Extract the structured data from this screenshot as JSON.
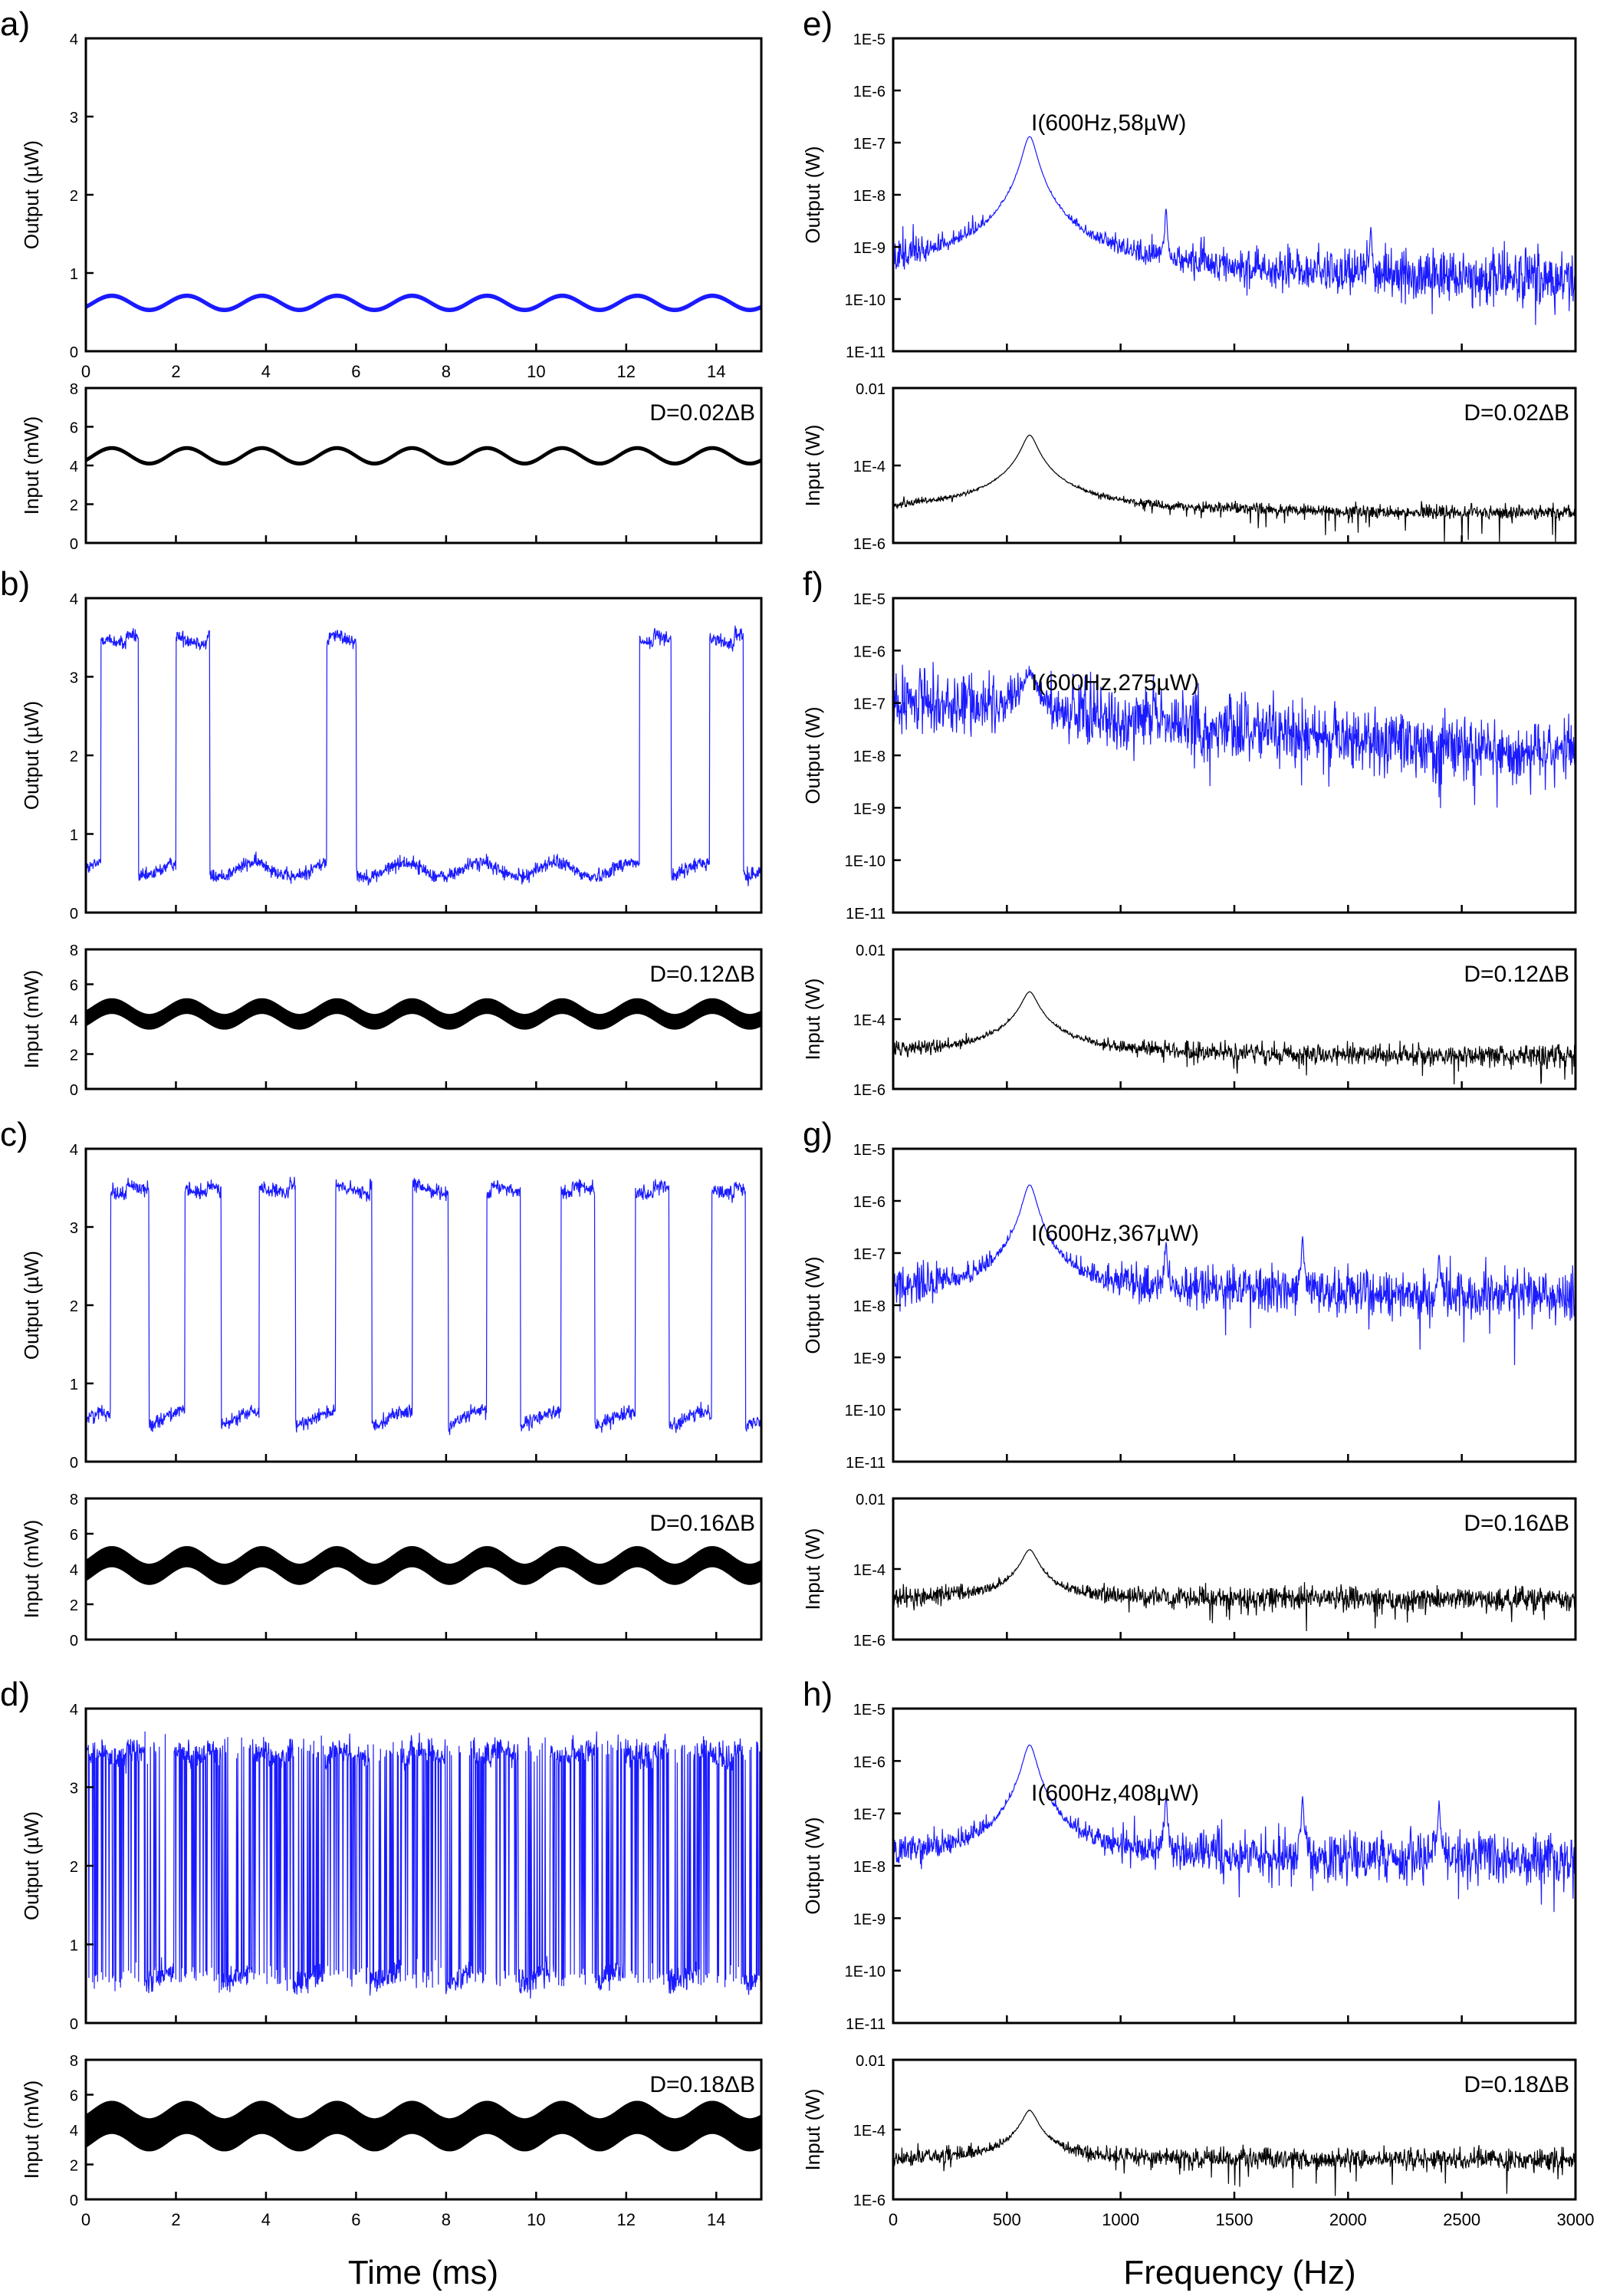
{
  "figure": {
    "time_xlabel": "Time (ms)",
    "freq_xlabel": "Frequency (Hz)"
  },
  "colors": {
    "output": "#1a1aff",
    "input": "#000000"
  },
  "chart_data": [
    {
      "id": "a-output",
      "panel_label": "a)",
      "type": "line",
      "ylabel": "Output (µW)",
      "xlim": [
        0,
        15
      ],
      "ylim": [
        0,
        4.4
      ],
      "xticks": [
        "0",
        "2",
        "4",
        "6",
        "8",
        "10",
        "12",
        "14"
      ],
      "yticks": [
        "0",
        "1",
        "2",
        "3",
        "4"
      ],
      "series": [
        {
          "behaviour": "sinusoid",
          "period_ms": 1.667,
          "baseline": 0.58,
          "peak": 0.78,
          "noise": 0.03,
          "color": "output"
        }
      ]
    },
    {
      "id": "a-input",
      "panel_label": "",
      "type": "line",
      "ylabel": "Input (mW)",
      "annotation": "D=0.02ΔB",
      "xlim": [
        0,
        15
      ],
      "ylim": [
        0,
        8
      ],
      "yticks": [
        "0",
        "2",
        "4",
        "6",
        "8"
      ],
      "series": [
        {
          "behaviour": "sinusoid",
          "period_ms": 1.667,
          "mean": 4.5,
          "amplitude": 0.4,
          "noise": 0.1,
          "color": "input"
        }
      ]
    },
    {
      "id": "b-output",
      "panel_label": "b)",
      "type": "line",
      "ylabel": "Output (µW)",
      "xlim": [
        0,
        15
      ],
      "ylim": [
        0,
        4.4
      ],
      "yticks": [
        "0",
        "1",
        "2",
        "3",
        "4"
      ],
      "series": [
        {
          "behaviour": "stochastic-switching",
          "low": 0.6,
          "high": 3.9,
          "high_intervals_ms": [
            [
              0.33,
              1.17
            ],
            [
              2.0,
              2.75
            ],
            [
              5.35,
              6.0
            ],
            [
              12.3,
              13.0
            ],
            [
              13.85,
              14.6
            ]
          ],
          "noise": 0.1,
          "color": "output"
        }
      ]
    },
    {
      "id": "b-input",
      "panel_label": "",
      "type": "line",
      "ylabel": "Input (mW)",
      "annotation": "D=0.12ΔB",
      "xlim": [
        0,
        15
      ],
      "ylim": [
        0,
        8
      ],
      "yticks": [
        "0",
        "2",
        "4",
        "6",
        "8"
      ],
      "series": [
        {
          "behaviour": "sinusoid",
          "period_ms": 1.667,
          "mean": 4.3,
          "amplitude": 0.45,
          "noise": 0.45,
          "color": "input"
        }
      ]
    },
    {
      "id": "c-output",
      "panel_label": "c)",
      "type": "line",
      "ylabel": "Output (µW)",
      "xlim": [
        0,
        15
      ],
      "ylim": [
        0,
        4.4
      ],
      "yticks": [
        "0",
        "1",
        "2",
        "3",
        "4"
      ],
      "series": [
        {
          "behaviour": "stochastic-switching",
          "low": 0.6,
          "high": 3.9,
          "high_intervals_ms": [
            [
              0.55,
              1.4
            ],
            [
              2.2,
              3.0
            ],
            [
              3.85,
              4.65
            ],
            [
              5.55,
              6.35
            ],
            [
              7.25,
              8.05
            ],
            [
              8.9,
              9.65
            ],
            [
              10.55,
              11.3
            ],
            [
              12.2,
              12.95
            ],
            [
              13.9,
              14.65
            ]
          ],
          "noise": 0.1,
          "color": "output"
        }
      ]
    },
    {
      "id": "c-input",
      "panel_label": "",
      "type": "line",
      "ylabel": "Input (mW)",
      "annotation": "D=0.16ΔB",
      "xlim": [
        0,
        15
      ],
      "ylim": [
        0,
        8
      ],
      "yticks": [
        "0",
        "2",
        "4",
        "6",
        "8"
      ],
      "series": [
        {
          "behaviour": "sinusoid",
          "period_ms": 1.667,
          "mean": 4.2,
          "amplitude": 0.5,
          "noise": 0.6,
          "color": "input"
        }
      ]
    },
    {
      "id": "d-output",
      "panel_label": "d)",
      "type": "line",
      "ylabel": "Output (µW)",
      "xlim": [
        0,
        15
      ],
      "ylim": [
        0,
        4.4
      ],
      "yticks": [
        "0",
        "1",
        "2",
        "3",
        "4"
      ],
      "series": [
        {
          "behaviour": "stochastic-switching",
          "low": 0.65,
          "high": 3.85,
          "high_intervals_ms": [
            [
              0.0,
              1.3
            ],
            [
              1.95,
              3.0
            ],
            [
              3.7,
              4.6
            ],
            [
              5.3,
              6.3
            ],
            [
              7.0,
              7.95
            ],
            [
              8.6,
              9.6
            ],
            [
              10.3,
              11.3
            ],
            [
              11.95,
              12.9
            ],
            [
              13.6,
              14.6
            ]
          ],
          "noise": 0.18,
          "chatter": true,
          "color": "output"
        }
      ]
    },
    {
      "id": "d-input",
      "panel_label": "",
      "type": "line",
      "ylabel": "Input (mW)",
      "annotation": "D=0.18ΔB",
      "xlim": [
        0,
        15
      ],
      "ylim": [
        0,
        8
      ],
      "xlabel": "Time (ms)",
      "xticks": [
        "0",
        "2",
        "4",
        "6",
        "8",
        "10",
        "12",
        "14"
      ],
      "yticks": [
        "0",
        "2",
        "4",
        "6",
        "8"
      ],
      "series": [
        {
          "behaviour": "sinusoid",
          "period_ms": 1.667,
          "mean": 4.2,
          "amplitude": 0.5,
          "noise": 0.95,
          "color": "input"
        }
      ]
    },
    {
      "id": "e-output",
      "panel_label": "e)",
      "type": "line",
      "yscale": "log",
      "ylabel": "Output (W)",
      "annotation": "I(600Hz,58µW)",
      "xlim": [
        0,
        3000
      ],
      "ylim_exp": [
        -11,
        -5
      ],
      "yticks": [
        "1E-11",
        "1E-10",
        "1E-9",
        "1E-8",
        "1E-7",
        "1E-6",
        "1E-5"
      ],
      "series": [
        {
          "behaviour": "spectrum",
          "floor_W": 4e-10,
          "floor_slope_decades": -0.25,
          "noise_decades": 0.28,
          "peaks": [
            {
              "f_Hz": 600,
              "W": 1.3e-07
            },
            {
              "f_Hz": 1200,
              "W": 5e-09
            },
            {
              "f_Hz": 2100,
              "W": 2e-09
            }
          ],
          "color": "output"
        }
      ]
    },
    {
      "id": "e-input",
      "panel_label": "",
      "type": "line",
      "yscale": "log",
      "ylabel": "Input (W)",
      "annotation": "D=0.02ΔB",
      "xlim": [
        0,
        3000
      ],
      "ylim_exp": [
        -7,
        -2
      ],
      "yticks": [
        "1E-6",
        "1E-4",
        "0.01"
      ],
      "series": [
        {
          "behaviour": "spectrum",
          "floor_W": 1.1e-06,
          "floor_slope_decades": -0.1,
          "noise_decades": 0.12,
          "peaks": [
            {
              "f_Hz": 600,
              "W": 0.0003
            }
          ],
          "color": "input"
        }
      ]
    },
    {
      "id": "f-output",
      "panel_label": "f)",
      "type": "line",
      "yscale": "log",
      "ylabel": "Output (W)",
      "annotation": "I(600Hz,275µW)",
      "xlim": [
        0,
        3000
      ],
      "ylim_exp": [
        -11,
        -5
      ],
      "yticks": [
        "1E-11",
        "1E-10",
        "1E-9",
        "1E-8",
        "1E-7",
        "1E-6",
        "1E-5"
      ],
      "series": [
        {
          "behaviour": "spectrum",
          "floor_W": 1.2e-07,
          "floor_slope_decades": -1.1,
          "noise_decades": 0.3,
          "peaks": [
            {
              "f_Hz": 600,
              "W": 3e-07
            }
          ],
          "color": "output"
        }
      ]
    },
    {
      "id": "f-input",
      "panel_label": "",
      "type": "line",
      "yscale": "log",
      "ylabel": "Input (W)",
      "annotation": "D=0.12ΔB",
      "xlim": [
        0,
        3000
      ],
      "ylim_exp": [
        -7,
        -2
      ],
      "yticks": [
        "1E-6",
        "1E-4",
        "0.01"
      ],
      "series": [
        {
          "behaviour": "spectrum",
          "floor_W": 2e-06,
          "floor_slope_decades": -0.15,
          "noise_decades": 0.2,
          "peaks": [
            {
              "f_Hz": 600,
              "W": 0.0003
            }
          ],
          "color": "input"
        }
      ]
    },
    {
      "id": "g-output",
      "panel_label": "g)",
      "type": "line",
      "yscale": "log",
      "ylabel": "Output (W)",
      "annotation": "I(600Hz,367µW)",
      "xlim": [
        0,
        3000
      ],
      "ylim_exp": [
        -11,
        -5
      ],
      "yticks": [
        "1E-11",
        "1E-10",
        "1E-9",
        "1E-8",
        "1E-7",
        "1E-6",
        "1E-5"
      ],
      "series": [
        {
          "behaviour": "spectrum",
          "floor_W": 1.8e-08,
          "floor_slope_decades": -0.05,
          "noise_decades": 0.25,
          "peaks": [
            {
              "f_Hz": 600,
              "W": 2e-06
            },
            {
              "f_Hz": 1200,
              "W": 1.5e-07
            },
            {
              "f_Hz": 1800,
              "W": 2e-07
            },
            {
              "f_Hz": 2400,
              "W": 8e-08
            }
          ],
          "color": "output"
        }
      ]
    },
    {
      "id": "g-input",
      "panel_label": "",
      "type": "line",
      "yscale": "log",
      "ylabel": "Input (W)",
      "annotation": "D=0.16ΔB",
      "xlim": [
        0,
        3000
      ],
      "ylim_exp": [
        -7,
        -2
      ],
      "yticks": [
        "1E-6",
        "1E-4",
        "0.01"
      ],
      "series": [
        {
          "behaviour": "spectrum",
          "floor_W": 3e-06,
          "floor_slope_decades": -0.05,
          "noise_decades": 0.2,
          "peaks": [
            {
              "f_Hz": 600,
              "W": 0.00015
            }
          ],
          "color": "input"
        }
      ]
    },
    {
      "id": "h-output",
      "panel_label": "h)",
      "type": "line",
      "yscale": "log",
      "ylabel": "Output (W)",
      "annotation": "I(600Hz,408µW)",
      "xlim": [
        0,
        3000
      ],
      "ylim_exp": [
        -11,
        -5
      ],
      "yticks": [
        "1E-11",
        "1E-10",
        "1E-9",
        "1E-8",
        "1E-7",
        "1E-6",
        "1E-5"
      ],
      "series": [
        {
          "behaviour": "spectrum",
          "floor_W": 1.5e-08,
          "floor_slope_decades": -0.05,
          "noise_decades": 0.25,
          "peaks": [
            {
              "f_Hz": 600,
              "W": 2e-06
            },
            {
              "f_Hz": 1200,
              "W": 2e-07
            },
            {
              "f_Hz": 1800,
              "W": 2e-07
            },
            {
              "f_Hz": 2400,
              "W": 1.5e-07
            }
          ],
          "color": "output"
        }
      ]
    },
    {
      "id": "h-input",
      "panel_label": "",
      "type": "line",
      "yscale": "log",
      "ylabel": "Input (W)",
      "annotation": "D=0.18ΔB",
      "xlim": [
        0,
        3000
      ],
      "ylim_exp": [
        -7,
        -2
      ],
      "xlabel": "Frequency (Hz)",
      "xticks": [
        "0",
        "500",
        "1000",
        "1500",
        "2000",
        "2500",
        "3000"
      ],
      "yticks": [
        "1E-6",
        "1E-4",
        "0.01"
      ],
      "series": [
        {
          "behaviour": "spectrum",
          "floor_W": 3e-06,
          "floor_slope_decades": -0.05,
          "noise_decades": 0.2,
          "peaks": [
            {
              "f_Hz": 600,
              "W": 0.00015
            }
          ],
          "color": "input"
        }
      ]
    }
  ]
}
